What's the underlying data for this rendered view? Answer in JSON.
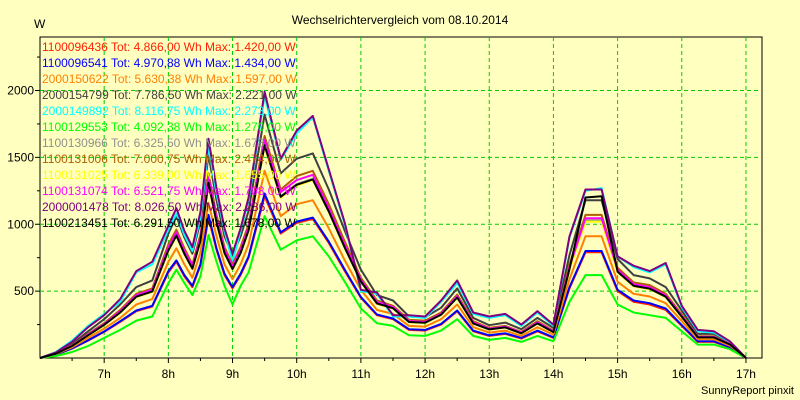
{
  "chart_data": {
    "type": "line",
    "title": "Wechselrichtervergleich vom 08.10.2014",
    "ylabel": "W",
    "footer": "SunnyReport pinxit",
    "x_ticks": [
      "7h",
      "8h",
      "9h",
      "10h",
      "11h",
      "12h",
      "13h",
      "14h",
      "15h",
      "16h",
      "17h"
    ],
    "x_tick_hours": [
      7,
      8,
      9,
      10,
      11,
      12,
      13,
      14,
      15,
      16,
      17
    ],
    "y_ticks": [
      500,
      1000,
      1500,
      2000
    ],
    "xlim": [
      6.0,
      17.25
    ],
    "ylim": [
      0,
      2400
    ],
    "grid": true,
    "legend_position": "top-left",
    "x": [
      6.0,
      6.25,
      6.5,
      6.75,
      7.0,
      7.25,
      7.5,
      7.75,
      8.0,
      8.125,
      8.25,
      8.375,
      8.5,
      8.625,
      8.75,
      8.875,
      9.0,
      9.125,
      9.25,
      9.5,
      9.75,
      10.0,
      10.25,
      10.5,
      10.75,
      11.0,
      11.25,
      11.5,
      11.75,
      12.0,
      12.25,
      12.5,
      12.75,
      13.0,
      13.25,
      13.5,
      13.75,
      14.0,
      14.25,
      14.5,
      14.75,
      15.0,
      15.25,
      15.5,
      15.75,
      16.0,
      16.25,
      16.5,
      16.75,
      17.0
    ],
    "series": [
      {
        "name": "1100096436 Tot: 4.866,00 Wh Max: 1.420,00 W",
        "color": "#ff2000",
        "values": [
          0,
          25,
          70,
          130,
          195,
          270,
          350,
          385,
          640,
          720,
          610,
          530,
          690,
          1050,
          810,
          620,
          520,
          620,
          750,
          1210,
          930,
          1010,
          1040,
          860,
          650,
          450,
          320,
          290,
          210,
          205,
          250,
          350,
          200,
          165,
          180,
          145,
          200,
          150,
          520,
          790,
          790,
          500,
          420,
          400,
          360,
          240,
          120,
          120,
          80,
          0
        ]
      },
      {
        "name": "1100096541 Tot: 4.970,88 Wh Max: 1.434,00 W",
        "color": "#0000ff",
        "values": [
          0,
          26,
          72,
          132,
          198,
          275,
          355,
          390,
          650,
          730,
          620,
          540,
          700,
          1070,
          820,
          630,
          530,
          630,
          760,
          1230,
          940,
          1020,
          1050,
          870,
          660,
          455,
          325,
          295,
          215,
          210,
          255,
          355,
          205,
          170,
          185,
          150,
          205,
          155,
          530,
          800,
          800,
          510,
          430,
          410,
          370,
          245,
          125,
          125,
          82,
          0
        ]
      },
      {
        "name": "2000150622 Tot: 5.630,38 Wh Max: 1.597,00 W",
        "color": "#ff8000",
        "values": [
          0,
          30,
          80,
          150,
          220,
          300,
          400,
          440,
          720,
          820,
          700,
          600,
          790,
          1160,
          910,
          700,
          590,
          700,
          850,
          1400,
          1060,
          1150,
          1180,
          970,
          730,
          510,
          360,
          330,
          240,
          235,
          290,
          400,
          230,
          190,
          205,
          165,
          230,
          175,
          590,
          910,
          910,
          570,
          480,
          460,
          410,
          275,
          140,
          140,
          92,
          0
        ]
      },
      {
        "name": "2000154799 Tot: 7.786,50 Wh Max: 2.221,00 W",
        "color": "#404040",
        "values": [
          0,
          40,
          105,
          200,
          290,
          400,
          530,
          580,
          930,
          1060,
          900,
          780,
          1020,
          1520,
          1180,
          910,
          770,
          910,
          1100,
          1820,
          1380,
          1490,
          1530,
          1260,
          950,
          660,
          470,
          430,
          310,
          305,
          375,
          520,
          300,
          245,
          265,
          215,
          300,
          225,
          770,
          1180,
          1180,
          740,
          620,
          595,
          530,
          355,
          180,
          180,
          118,
          0
        ]
      },
      {
        "name": "2000149892 Tot: 8.116,75 Wh Max: 2.273,00 W",
        "color": "#00ffff",
        "values": [
          0,
          45,
          130,
          240,
          330,
          420,
          640,
          700,
          960,
          1080,
          920,
          800,
          1050,
          1580,
          1230,
          950,
          720,
          950,
          1180,
          1960,
          1480,
          1680,
          1800,
          1400,
          1000,
          500,
          480,
          310,
          310,
          300,
          420,
          560,
          330,
          300,
          320,
          240,
          340,
          240,
          900,
          1250,
          1270,
          760,
          680,
          640,
          700,
          380,
          200,
          190,
          120,
          0
        ]
      },
      {
        "name": "1100129553 Tot: 4.092,38 Wh Max: 1.270,00 W",
        "color": "#00ff00",
        "values": [
          0,
          15,
          45,
          90,
          150,
          210,
          280,
          310,
          560,
          660,
          560,
          470,
          610,
          920,
          720,
          540,
          400,
          540,
          640,
          1060,
          810,
          880,
          910,
          760,
          570,
          370,
          260,
          240,
          170,
          165,
          205,
          290,
          165,
          135,
          150,
          120,
          165,
          125,
          420,
          620,
          620,
          400,
          340,
          320,
          300,
          200,
          100,
          100,
          66,
          0
        ]
      },
      {
        "name": "1100130966 Tot: 6.325,50 Wh Max: 1.678,00 W",
        "color": "#909090",
        "values": [
          0,
          32,
          90,
          170,
          250,
          340,
          460,
          500,
          810,
          920,
          780,
          670,
          880,
          1320,
          1020,
          790,
          670,
          790,
          960,
          1600,
          1210,
          1300,
          1340,
          1100,
          830,
          575,
          410,
          375,
          270,
          265,
          325,
          455,
          260,
          215,
          230,
          185,
          260,
          195,
          670,
          1030,
          1030,
          645,
          540,
          520,
          460,
          310,
          155,
          155,
          102,
          0
        ]
      },
      {
        "name": "1100131006 Tot: 7.000,75 Wh Max: 2.474,00 W",
        "color": "#b06000",
        "values": [
          0,
          35,
          95,
          180,
          260,
          360,
          480,
          520,
          850,
          960,
          820,
          700,
          920,
          1380,
          1070,
          830,
          700,
          830,
          1000,
          1660,
          1260,
          1360,
          1400,
          1150,
          870,
          600,
          430,
          390,
          285,
          280,
          340,
          475,
          275,
          225,
          240,
          195,
          275,
          205,
          700,
          1070,
          1070,
          675,
          565,
          545,
          480,
          325,
          162,
          162,
          106,
          0
        ]
      },
      {
        "name": "1100131025 Tot: 6.339,00 Wh Max: 1.655,00 W",
        "color": "#ffff00",
        "values": [
          0,
          33,
          88,
          168,
          246,
          338,
          455,
          495,
          800,
          910,
          775,
          665,
          870,
          1300,
          1010,
          780,
          660,
          780,
          950,
          1580,
          1200,
          1290,
          1330,
          1090,
          820,
          570,
          405,
          370,
          268,
          262,
          322,
          450,
          258,
          212,
          228,
          184,
          258,
          193,
          660,
          1020,
          1020,
          640,
          535,
          515,
          455,
          305,
          153,
          153,
          101,
          0
        ]
      },
      {
        "name": "1100131074 Tot: 6.521,75 Wh Max: 1.708,00 W",
        "color": "#ff00ff",
        "values": [
          0,
          34,
          92,
          175,
          255,
          350,
          470,
          510,
          830,
          940,
          800,
          690,
          900,
          1350,
          1045,
          810,
          685,
          810,
          980,
          1630,
          1240,
          1330,
          1370,
          1120,
          845,
          585,
          418,
          382,
          276,
          270,
          332,
          463,
          266,
          219,
          235,
          190,
          266,
          199,
          680,
          1045,
          1045,
          660,
          552,
          530,
          468,
          315,
          158,
          158,
          104,
          0
        ]
      },
      {
        "name": "2000001478 Tot: 8.026,50 Wh Max: 2.286,00 W",
        "color": "#800080",
        "values": [
          0,
          42,
          120,
          230,
          320,
          440,
          650,
          720,
          990,
          1120,
          950,
          830,
          1090,
          1640,
          1270,
          970,
          780,
          970,
          1200,
          1990,
          1490,
          1700,
          1810,
          1410,
          1010,
          510,
          490,
          320,
          320,
          310,
          430,
          580,
          340,
          310,
          330,
          250,
          350,
          250,
          910,
          1260,
          1260,
          760,
          690,
          650,
          710,
          390,
          210,
          200,
          125,
          0
        ]
      },
      {
        "name": "1100213451 Tot: 6.291,50 Wh Max: 1.678,00 W",
        "color": "#000000",
        "values": [
          0,
          33,
          90,
          170,
          248,
          340,
          458,
          498,
          805,
          915,
          778,
          668,
          875,
          1310,
          1015,
          785,
          665,
          785,
          955,
          1590,
          1205,
          1295,
          1335,
          1095,
          825,
          572,
          408,
          372,
          269,
          264,
          324,
          452,
          259,
          214,
          229,
          185,
          259,
          194,
          665,
          1200,
          1210,
          645,
          540,
          518,
          458,
          308,
          154,
          154,
          101,
          0
        ]
      }
    ]
  }
}
